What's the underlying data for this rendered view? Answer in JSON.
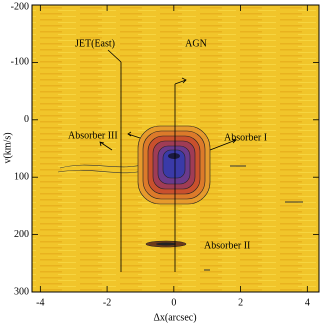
{
  "chart_data": {
    "type": "contour",
    "xlabel": "Δx(arcsec)",
    "ylabel": "v(km/s)",
    "xlim": [
      -4.25,
      4.35
    ],
    "ylim": [
      -200,
      300
    ],
    "xticks": [
      -4,
      -2,
      0,
      2,
      4
    ],
    "yticks": [
      -200,
      -100,
      0,
      100,
      200,
      300
    ],
    "annotations": [
      "JET(East)",
      "AGN",
      "Absorber III",
      "Absorber I",
      "Absorber II"
    ]
  }
}
